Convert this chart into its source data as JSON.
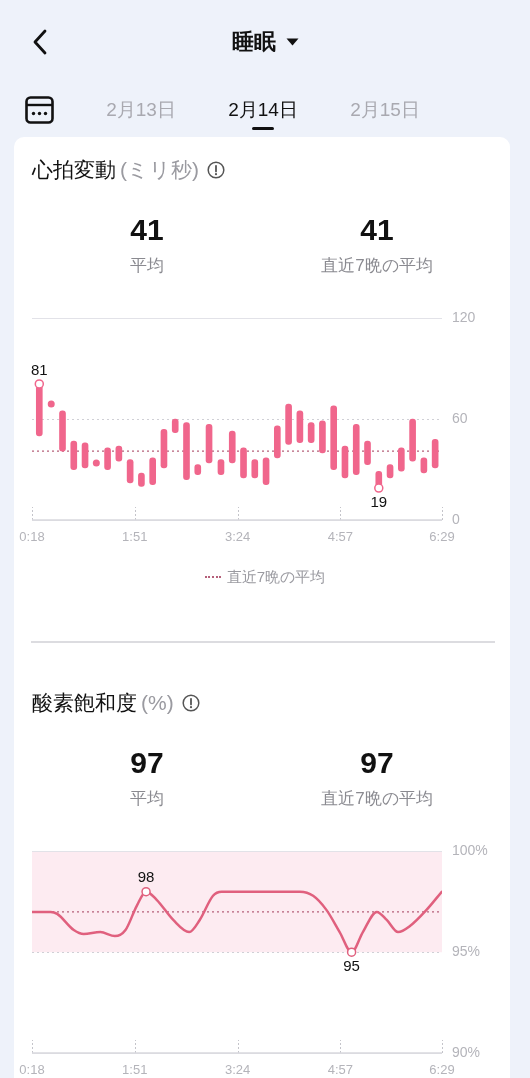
{
  "chart_data": [
    {
      "type": "other",
      "title": "睡眠",
      "annotations": [
        "2月13日",
        "2月14日",
        "2月15日"
      ]
    },
    {
      "type": "bar",
      "title": "心拍変動",
      "subtitle": "(ミリ秒)",
      "x": [
        0.41,
        0.59,
        0.76,
        0.93,
        1.1,
        1.27,
        1.44,
        1.61,
        1.78,
        1.95,
        2.12,
        2.29,
        2.46,
        2.63,
        2.8,
        2.97,
        3.15,
        3.32,
        3.49,
        3.66,
        3.83,
        4,
        4.17,
        4.34,
        4.51,
        4.68,
        4.85,
        5.02,
        5.19,
        5.36,
        5.53,
        5.7,
        5.87,
        6.04,
        6.21,
        6.38
      ],
      "series": [
        {
          "type": "bar",
          "color": "#f0668c",
          "base": [
            50,
            null,
            41,
            30,
            31,
            null,
            30,
            35,
            22,
            20,
            21,
            31,
            52,
            24,
            27,
            34,
            27,
            34,
            25,
            25,
            21,
            37,
            45,
            46,
            46,
            40,
            30,
            25,
            27,
            33,
            19,
            25,
            29,
            35,
            28,
            31
          ],
          "values": [
            31,
            null,
            24,
            17,
            15,
            null,
            13,
            9,
            14,
            8,
            16,
            23,
            8,
            34,
            6,
            23,
            9,
            19,
            18,
            11,
            16,
            19,
            24,
            19,
            12,
            19,
            38,
            19,
            30,
            14,
            10,
            8,
            14,
            25,
            9,
            17
          ]
        },
        {
          "type": "scatter",
          "color": "#f0668c",
          "x": [
            0.59,
            1.27
          ],
          "values": [
            69,
            34
          ]
        }
      ],
      "marker": "circle",
      "xlim": [
        0.3,
        6.4833
      ],
      "xticks": [
        {
          "value": 0.3,
          "label": "0:18"
        },
        {
          "value": 1.85,
          "label": "1:51"
        },
        {
          "value": 3.4,
          "label": "3:24"
        },
        {
          "value": 4.95,
          "label": "4:57"
        },
        {
          "value": 6.4833,
          "label": "6:29"
        }
      ],
      "ylim": [
        0,
        120
      ],
      "yticks": [
        0,
        60,
        120
      ],
      "grid": "y",
      "ref_lines": [
        {
          "axis": "y",
          "value": 41,
          "label": "直近7晩の平均",
          "line_style": "dotted",
          "color": "#b5607a"
        }
      ],
      "legend": "bottom",
      "annotations": [
        "41",
        "平均",
        "41",
        "直近7晩の平均",
        {
          "text": "81",
          "x": 0.41,
          "y": 81
        },
        {
          "text": "19",
          "x": 5.53,
          "y": 19
        }
      ]
    },
    {
      "type": "line",
      "title": "酸素飽和度",
      "subtitle": "(%)",
      "x": [
        0.3,
        0.58,
        0.68,
        0.93,
        1.08,
        1.33,
        1.55,
        1.71,
        1.88,
        2.02,
        2.18,
        2.43,
        2.67,
        2.83,
        3.03,
        3.16,
        3.39,
        3.74,
        4.04,
        4.34,
        4.54,
        4.74,
        4.94,
        5.12,
        5.29,
        5.5,
        5.65,
        5.82,
        6.0,
        6.25,
        6.48
      ],
      "values": [
        97,
        97,
        96.9,
        96.1,
        95.9,
        96,
        95.8,
        96.1,
        97.3,
        98,
        97.6,
        96.6,
        96,
        96.6,
        97.8,
        98,
        98,
        98,
        98,
        98,
        97.8,
        97.1,
        96,
        95,
        96,
        97,
        96.6,
        96,
        96.3,
        97.1,
        98
      ],
      "color": "#e0607e",
      "xlim": [
        0.3,
        6.4833
      ],
      "xticks": [
        {
          "value": 0.3,
          "label": "0:18"
        },
        {
          "value": 1.85,
          "label": "1:51"
        },
        {
          "value": 3.4,
          "label": "3:24"
        },
        {
          "value": 4.95,
          "label": "4:57"
        },
        {
          "value": 6.4833,
          "label": "6:29"
        }
      ],
      "ylim": [
        90,
        100
      ],
      "yticks": [
        {
          "value": 90,
          "label": "90%"
        },
        {
          "value": 95,
          "label": "95%"
        },
        {
          "value": 100,
          "label": "100%"
        }
      ],
      "grid": "y",
      "bands": [
        {
          "axis": "y",
          "from": 95,
          "to": 100,
          "color": "#fdebf1"
        }
      ],
      "ref_lines": [
        {
          "axis": "y",
          "value": 97,
          "line_style": "dotted",
          "color": "#b5607a"
        }
      ],
      "annotations": [
        "97",
        "平均",
        "97",
        "直近7晩の平均",
        {
          "text": "98",
          "x": 2.02,
          "y": 98
        },
        {
          "text": "95",
          "x": 5.12,
          "y": 95
        }
      ]
    }
  ]
}
